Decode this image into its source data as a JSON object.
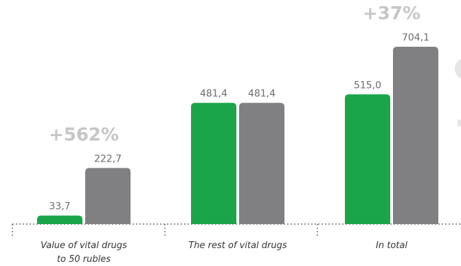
{
  "chart_data": {
    "type": "bar",
    "categories": [
      [
        "Value of vital drugs",
        "to 50 rubles"
      ],
      [
        "The rest of vital drugs"
      ],
      [
        "In total"
      ]
    ],
    "series": [
      {
        "values": [
          33.7,
          481.4,
          515.0
        ],
        "labels": [
          "33,7",
          "481,4",
          "515,0"
        ],
        "color": "#1aa54a"
      },
      {
        "values": [
          222.7,
          481.4,
          704.1
        ],
        "labels": [
          "222,7",
          "481,4",
          "704,1"
        ],
        "color": "#808083"
      }
    ],
    "annotations": [
      "+562%",
      "",
      "+37%"
    ],
    "ylim": [
      0,
      704.1
    ],
    "grid": false,
    "xlabel": "",
    "ylabel": ""
  }
}
